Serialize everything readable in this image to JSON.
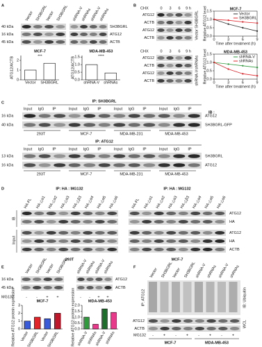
{
  "panels": {
    "a": {
      "letter": "A",
      "lanes_left": [
        "Vector",
        "SH3BGRL",
        "Vector",
        "SH3BGRL"
      ],
      "lanes_right": [
        "shRNA-V",
        "shRNAs",
        "shRNA-V",
        "shRNAs"
      ],
      "markers": [
        "40 kDa",
        "16 kDa",
        "45 kDa"
      ],
      "rows": [
        "SH3BGRL",
        "ATG12",
        "ACTB"
      ],
      "charts": [
        {
          "type": "bar",
          "title": "MCF-7",
          "y_label": "ATG12/ACTB",
          "categories": [
            "Vector",
            "SH3BGRL"
          ],
          "values": [
            1.0,
            1.7
          ],
          "colors": [
            "#ffffff",
            "#ffffff"
          ],
          "ylim": [
            0,
            2.5
          ],
          "yticks": [
            0,
            1,
            2
          ],
          "significance": "***"
        },
        {
          "type": "bar",
          "title": "MDA-MB-453",
          "y_label": "ATG12/ACTB",
          "categories": [
            "shRNA-V",
            "shRNAs"
          ],
          "values": [
            1.0,
            0.45
          ],
          "colors": [
            "#ffffff",
            "#ffffff"
          ],
          "ylim": [
            0,
            1.6
          ],
          "yticks": [
            {
              "value": 0,
              "label": "0.0"
            },
            {
              "value": 0.5,
              "label": "0.5"
            },
            {
              "value": 1,
              "label": "1.0"
            },
            {
              "value": 1.5,
              "label": "1.5"
            }
          ],
          "significance": "****"
        }
      ]
    },
    "b": {
      "letter": "B",
      "treatment": "CHX",
      "times": [
        "0",
        "3",
        "6",
        "9 h"
      ],
      "rows": [
        "ATG12",
        "ACTB",
        "ATG12",
        "ACTB"
      ],
      "groups_top": [
        "SH3BGRL",
        "Vector"
      ],
      "groups_bottom": [
        "shRNAs",
        "shRNA-V"
      ],
      "charts": [
        {
          "type": "line",
          "title": "MCF-7",
          "x_label": "Time after treatment (h)",
          "y_label": "Relative ATG12 level",
          "x": [
            0,
            3,
            6,
            9
          ],
          "xlim": [
            0,
            9
          ],
          "xticks": [
            0,
            3,
            6,
            9
          ],
          "ylim": [
            0,
            1.5
          ],
          "yticks": [
            {
              "value": 0,
              "label": "0.0"
            },
            {
              "value": 0.5,
              "label": "0.5"
            },
            {
              "value": 1,
              "label": "1.0"
            },
            {
              "value": 1.5,
              "label": "1.5"
            }
          ],
          "series": [
            {
              "name": "Vector",
              "color": "#333333",
              "values": [
                1,
                0.72,
                0.5,
                0.3
              ]
            },
            {
              "name": "SH3BGRL",
              "color": "#e0242a",
              "values": [
                1,
                0.95,
                0.85,
                0.78
              ]
            }
          ]
        },
        {
          "type": "line",
          "title": "MDA-MB-453",
          "x_label": "Time after treatment (h)",
          "y_label": "Relative ATG12 level",
          "x": [
            0,
            3,
            6,
            9
          ],
          "xlim": [
            0,
            9
          ],
          "xticks": [
            0,
            3,
            6,
            9
          ],
          "ylim": [
            0,
            1.5
          ],
          "yticks": [
            {
              "value": 0,
              "label": "0.0"
            },
            {
              "value": 0.5,
              "label": "0.5"
            },
            {
              "value": 1,
              "label": "1.0"
            },
            {
              "value": 1.5,
              "label": "1.5"
            }
          ],
          "series": [
            {
              "name": "shRNA-V",
              "color": "#2e9a3c",
              "values": [
                1,
                0.9,
                0.8,
                0.7
              ]
            },
            {
              "name": "shRNAs",
              "color": "#e0242a",
              "values": [
                1,
                0.6,
                0.32,
                0.2
              ]
            }
          ]
        }
      ]
    },
    "c": {
      "letter": "C",
      "ib": "IB :",
      "lanes": [
        "Input",
        "IgG",
        "IP"
      ],
      "groups": [
        "293T",
        "MCF-7",
        "MDA-MB-231",
        "MDA-MB-453"
      ],
      "blocks": [
        {
          "title": "IP: SH3BGRL",
          "markers": [
            "16 kDa",
            "40 kDa"
          ],
          "rows": [
            "ATG12",
            "SH3BGRL-GFP"
          ]
        },
        {
          "title": "IP: ATG12",
          "markers": [
            "13 kDa",
            "16 kDa"
          ],
          "rows": [
            "SH3BGRL",
            "ATG12"
          ]
        }
      ]
    },
    "d": {
      "letter": "D",
      "title": "IP: HA : MG132",
      "lanes": [
        "HA-FL",
        "HA-△α1",
        "HA-△α2",
        "HA-△α3",
        "HA-△β3",
        "HA-△α4",
        "HA-△α5",
        "HA-△α6"
      ],
      "sections": [
        "IB",
        "Input"
      ],
      "rows": [
        "ATG12",
        "HA",
        "ATG12",
        "HA",
        "ACTB"
      ],
      "cells": [
        "293T",
        "MCF-7"
      ]
    },
    "e": {
      "letter": "E",
      "lanes_left": [
        "Vector",
        "SH3BGRL",
        "Vector",
        "SH3BGRL"
      ],
      "lanes_right": [
        "shRNA-V",
        "shRNAs",
        "shRNA-V",
        "shRNAs"
      ],
      "markers": [
        "16 kDa",
        "45 kDa"
      ],
      "rows": [
        "ATG12",
        "ACTB"
      ],
      "treatment": "MG132",
      "signs": [
        "-",
        "-",
        "+",
        "+"
      ],
      "charts": [
        {
          "type": "bar",
          "title": "MCF-7",
          "y_label": "Relative ATG12 protein expression",
          "categories": [
            "Vector",
            "SH3BGRL",
            "Vector",
            "SH3BGRL"
          ],
          "values": [
            1.0,
            1.5,
            1.3,
            2.0
          ],
          "colors": [
            "#3a5bd9",
            "#e0242a",
            "#3a5bd9",
            "#c0182a"
          ],
          "ylim": [
            0,
            3
          ],
          "yticks": [
            0,
            1,
            2,
            3
          ]
        },
        {
          "type": "bar",
          "title": "MDA-MB-453",
          "y_label": "Relative ATG12 protein expression",
          "categories": [
            "shRNA-V",
            "shRNAs",
            "shRNA-V",
            "shRNAs"
          ],
          "values": [
            1.0,
            0.4,
            1.7,
            1.4
          ],
          "colors": [
            "#2e9a3c",
            "#e83a8a",
            "#1d6e2b",
            "#e83a8a"
          ],
          "ylim": [
            0,
            2
          ],
          "yticks": [
            {
              "value": 0,
              "label": "0.0"
            },
            {
              "value": 0.5,
              "label": "0.5"
            },
            {
              "value": 1,
              "label": "1.0"
            },
            {
              "value": 1.5,
              "label": "1.5"
            },
            {
              "value": 2,
              "label": "2.0"
            }
          ]
        }
      ]
    },
    "f": {
      "letter": "F",
      "lanes": [
        "Vector",
        "SH3BGRL",
        "Vector",
        "SH3BGRL",
        "shRNA-V",
        "shRNAs",
        "shRNA-V",
        "shRNAs"
      ],
      "ip": "IP: ATG12",
      "ib": "IB: Ubiquitin",
      "rows": [
        "ATG12",
        "ACTB"
      ],
      "wcl": "WCL",
      "treatment": "MG132",
      "signs": [
        "-",
        "+",
        "-",
        "+",
        "-",
        "+",
        "-",
        "+"
      ],
      "cells": [
        "MCF-7",
        "MDA-MB-453"
      ]
    }
  }
}
